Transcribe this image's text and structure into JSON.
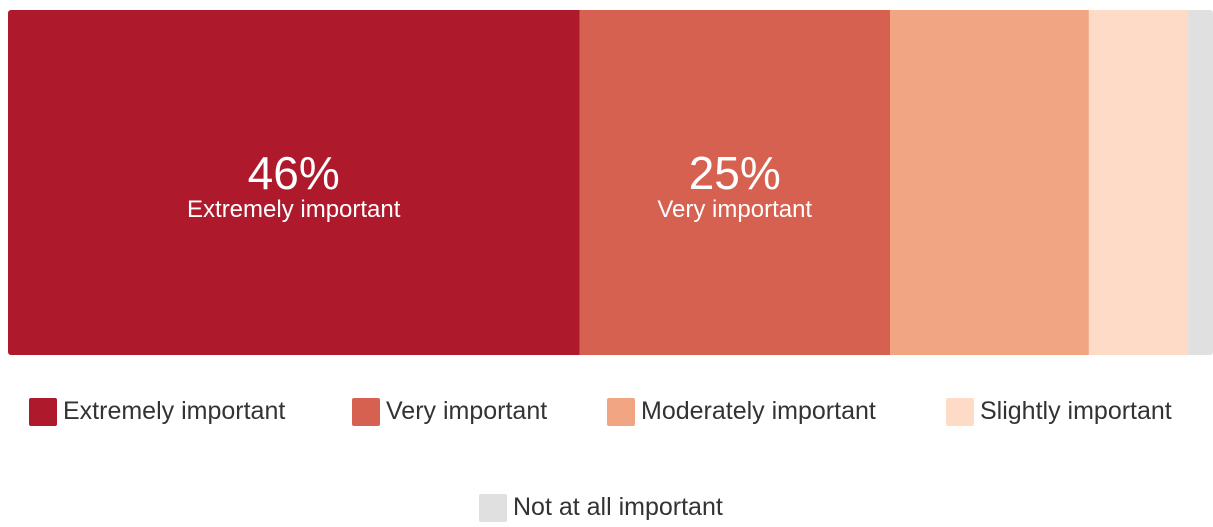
{
  "chart_data": {
    "type": "bar",
    "orientation": "horizontal-stacked-100",
    "series": [
      {
        "name": "Extremely important",
        "value": 46,
        "label": "46%",
        "color": "#ae192c"
      },
      {
        "name": "Very important",
        "value": 25,
        "label": "25%",
        "color": "#d66150"
      },
      {
        "name": "Moderately important",
        "value": 16,
        "label": "",
        "color": "#f2a583"
      },
      {
        "name": "Slightly important",
        "value": 8,
        "label": "",
        "color": "#fedbc6"
      },
      {
        "name": "Not at all important",
        "value": 2,
        "label": "",
        "color": "#e0e0e0"
      }
    ],
    "legend_position": "bottom",
    "grid": false
  },
  "legend": [
    {
      "label": "Extremely important",
      "color": "#ae192c"
    },
    {
      "label": "Very important",
      "color": "#d66150"
    },
    {
      "label": "Moderately important",
      "color": "#f2a583"
    },
    {
      "label": "Slightly important",
      "color": "#fedbc6"
    },
    {
      "label": "Not at all important",
      "color": "#e0e0e0"
    }
  ]
}
